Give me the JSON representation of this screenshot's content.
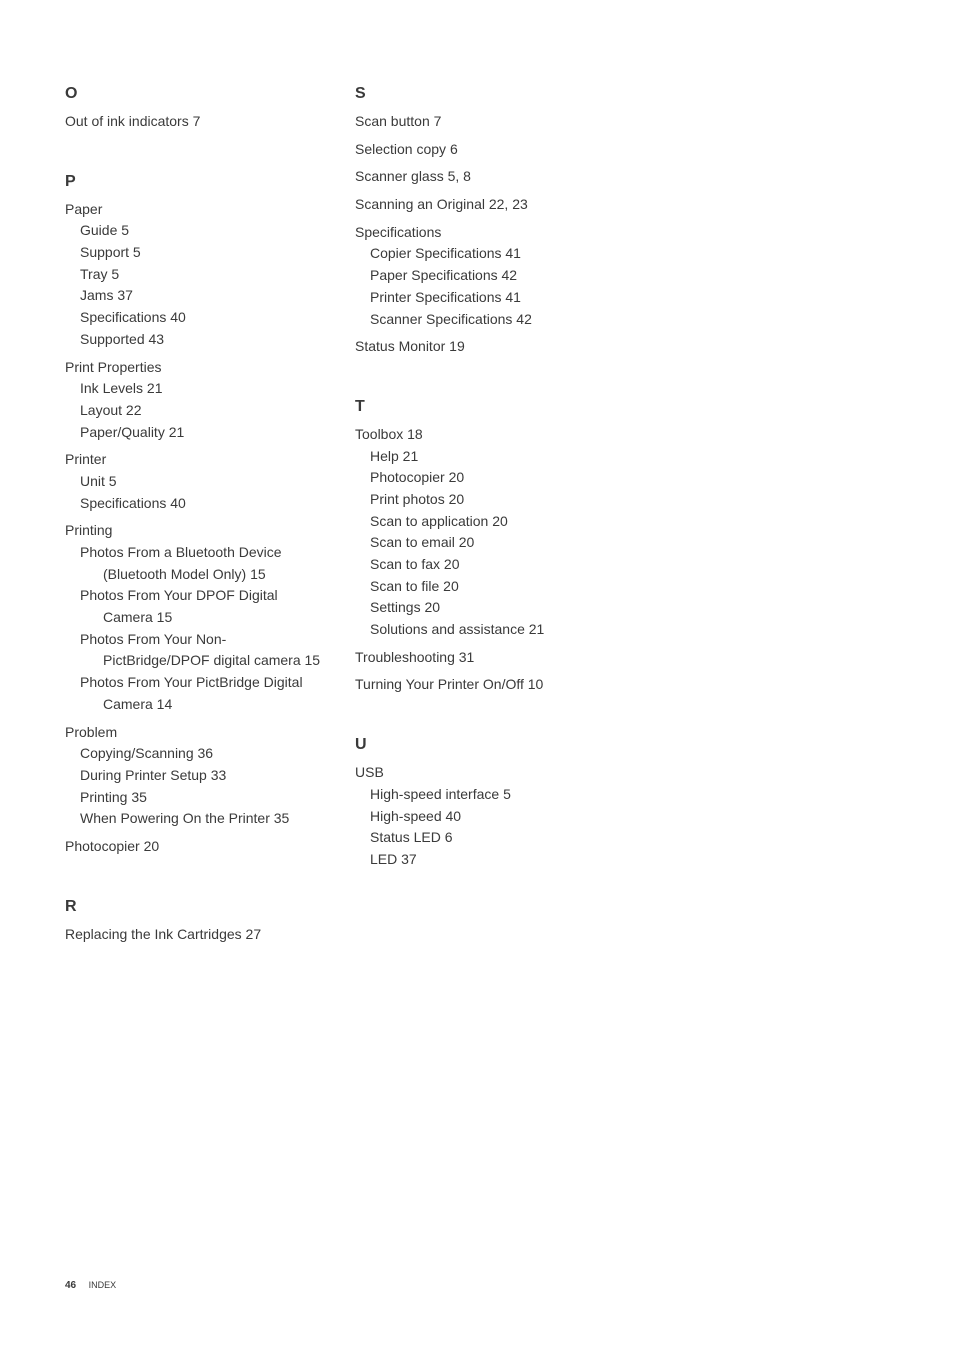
{
  "column1": {
    "sectionO": {
      "letter": "O",
      "entries": [
        {
          "text": "Out of ink indicators 7",
          "level": 0
        }
      ]
    },
    "sectionP": {
      "letter": "P",
      "entries": [
        {
          "text": "Paper",
          "level": 0
        },
        {
          "text": "Guide 5",
          "level": 1
        },
        {
          "text": "Support 5",
          "level": 1
        },
        {
          "text": "Tray 5",
          "level": 1
        },
        {
          "text": "Jams 37",
          "level": 1
        },
        {
          "text": "Specifications 40",
          "level": 1
        },
        {
          "text": "Supported 43",
          "level": 1
        },
        {
          "text": "Print Properties",
          "level": 0,
          "spaced": true
        },
        {
          "text": "Ink Levels 21",
          "level": 1
        },
        {
          "text": "Layout 22",
          "level": 1
        },
        {
          "text": "Paper/Quality 21",
          "level": 1
        },
        {
          "text": "Printer",
          "level": 0,
          "spaced": true
        },
        {
          "text": "Unit 5",
          "level": 1
        },
        {
          "text": "Specifications 40",
          "level": 1
        },
        {
          "text": "Printing",
          "level": 0,
          "spaced": true
        },
        {
          "text": "Photos From a Bluetooth Device (Bluetooth Model Only) 15",
          "level": 1,
          "wrap": true
        },
        {
          "text": "Photos From Your DPOF Digital Camera 15",
          "level": 1,
          "wrap": true
        },
        {
          "text": "Photos From Your Non-PictBridge/DPOF digital camera 15",
          "level": 1,
          "wrap": true
        },
        {
          "text": "Photos From Your PictBridge Digital Camera 14",
          "level": 1,
          "wrap": true
        },
        {
          "text": "Problem",
          "level": 0,
          "spaced": true
        },
        {
          "text": "Copying/Scanning 36",
          "level": 1
        },
        {
          "text": "During Printer Setup 33",
          "level": 1
        },
        {
          "text": "Printing 35",
          "level": 1
        },
        {
          "text": "When Powering On the Printer 35",
          "level": 1,
          "wrap": true
        },
        {
          "text": "Photocopier 20",
          "level": 0,
          "spaced": true
        }
      ]
    },
    "sectionR": {
      "letter": "R",
      "entries": [
        {
          "text": "Replacing the Ink Cartridges 27",
          "level": 0,
          "wrap": true
        }
      ]
    }
  },
  "column2": {
    "sectionS": {
      "letter": "S",
      "entries": [
        {
          "text": "Scan button 7",
          "level": 0
        },
        {
          "text": "Selection copy 6",
          "level": 0,
          "spaced": true
        },
        {
          "text": "Scanner glass 5, 8",
          "level": 0,
          "spaced": true
        },
        {
          "text": "Scanning an Original 22, 23",
          "level": 0,
          "spaced": true
        },
        {
          "text": "Specifications",
          "level": 0,
          "spaced": true
        },
        {
          "text": "Copier Specifications 41",
          "level": 1
        },
        {
          "text": "Paper Specifications 42",
          "level": 1
        },
        {
          "text": "Printer Specifications 41",
          "level": 1
        },
        {
          "text": "Scanner Specifications 42",
          "level": 1
        },
        {
          "text": "Status Monitor 19",
          "level": 0,
          "spaced": true
        }
      ]
    },
    "sectionT": {
      "letter": "T",
      "entries": [
        {
          "text": "Toolbox 18",
          "level": 0
        },
        {
          "text": "Help 21",
          "level": 1
        },
        {
          "text": "Photocopier 20",
          "level": 1
        },
        {
          "text": "Print photos 20",
          "level": 1
        },
        {
          "text": "Scan to application 20",
          "level": 1
        },
        {
          "text": "Scan to email 20",
          "level": 1
        },
        {
          "text": "Scan to fax 20",
          "level": 1
        },
        {
          "text": "Scan to file 20",
          "level": 1
        },
        {
          "text": "Settings 20",
          "level": 1
        },
        {
          "text": "Solutions and assistance 21",
          "level": 1
        },
        {
          "text": "Troubleshooting 31",
          "level": 0,
          "spaced": true
        },
        {
          "text": "Turning Your Printer On/Off 10",
          "level": 0,
          "spaced": true,
          "wrap": true
        }
      ]
    },
    "sectionU": {
      "letter": "U",
      "entries": [
        {
          "text": "USB",
          "level": 0
        },
        {
          "text": "High-speed interface 5",
          "level": 1
        },
        {
          "text": "High-speed 40",
          "level": 1
        },
        {
          "text": "Status LED 6",
          "level": 1
        },
        {
          "text": "LED 37",
          "level": 1
        }
      ]
    }
  },
  "footer": {
    "pageNumber": "46",
    "label": "INDEX"
  }
}
